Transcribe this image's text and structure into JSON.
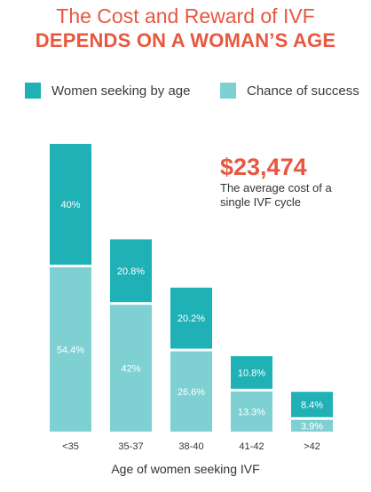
{
  "header": {
    "title_line1": "The Cost and Reward of IVF",
    "title_line2": "DEPENDS ON A WOMAN’S AGE"
  },
  "legend": {
    "seeking_label": "Women seeking by age",
    "success_label": "Chance of success"
  },
  "callout": {
    "amount": "$23,474",
    "description": "The average cost of a single IVF cycle"
  },
  "colors": {
    "seeking": "#1fb1b6",
    "success": "#7fd0d2",
    "accent": "#e8573f"
  },
  "chart_data": {
    "type": "bar",
    "stacked": true,
    "categories": [
      "<35",
      "35-37",
      "38-40",
      "41-42",
      ">42"
    ],
    "series": [
      {
        "name": "Women seeking by age",
        "values": [
          40,
          20.8,
          20.2,
          10.8,
          8.4
        ],
        "labels": [
          "40%",
          "20.8%",
          "20.2%",
          "10.8%",
          "8.4%"
        ]
      },
      {
        "name": "Chance of success",
        "values": [
          54.4,
          42,
          26.6,
          13.3,
          3.9
        ],
        "labels": [
          "54.4%",
          "42%",
          "26.6%",
          "13.3%",
          "3.9%"
        ]
      }
    ],
    "title": "The Cost and Reward of IVF",
    "subtitle": "DEPENDS ON A WOMAN’S AGE",
    "xlabel": "Age of women seeking IVF",
    "ylabel": ""
  }
}
